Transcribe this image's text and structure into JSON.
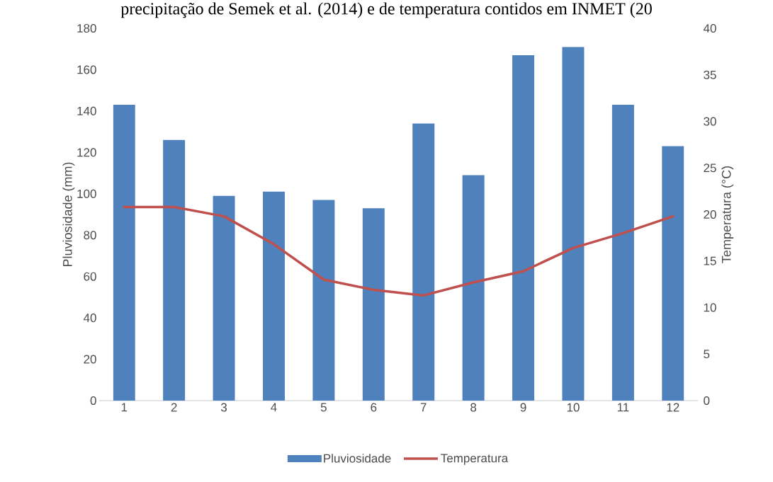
{
  "chart_data": {
    "type": "bar",
    "categories": [
      "1",
      "2",
      "3",
      "4",
      "5",
      "6",
      "7",
      "8",
      "9",
      "10",
      "11",
      "12"
    ],
    "series": [
      {
        "name": "Pluviosidade",
        "color": "#4f81bd",
        "values": [
          143,
          126,
          99,
          101,
          97,
          93,
          134,
          109,
          167,
          171,
          143,
          123
        ]
      },
      {
        "name": "Temperatura",
        "type": "line",
        "axis": "y2",
        "color": "#c0504d",
        "values": [
          20.8,
          20.8,
          19.8,
          16.8,
          13.0,
          11.9,
          11.3,
          12.7,
          13.9,
          16.4,
          18.0,
          19.8
        ]
      }
    ],
    "ylabel": "Pluviosidade (mm)",
    "y2label": "Temperatura (°C)",
    "ylim": [
      0,
      180
    ],
    "yticks": [
      0,
      20,
      40,
      60,
      80,
      100,
      120,
      140,
      160,
      180
    ],
    "y2lim": [
      0,
      40
    ],
    "y2ticks": [
      0,
      5,
      10,
      15,
      20,
      25,
      30,
      35,
      40
    ],
    "legend": "bottom",
    "grid": false,
    "marker": "none",
    "line_style": "solid",
    "annotations": [
      "precipitação de Semek et al. (2014) e de temperatura contidos em INMET (20"
    ]
  }
}
